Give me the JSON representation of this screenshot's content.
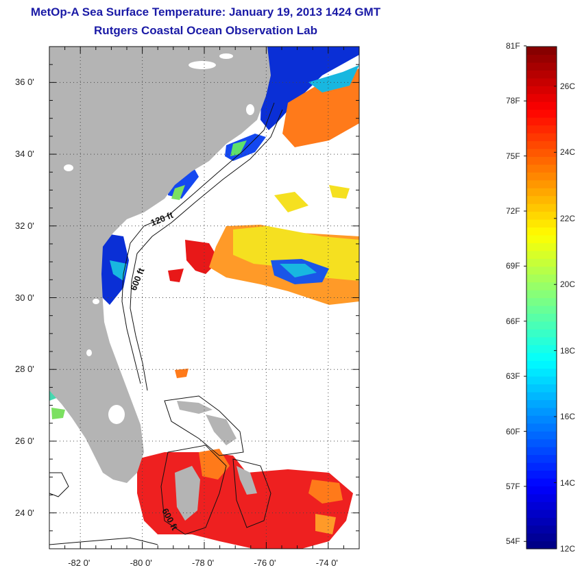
{
  "title": {
    "line1": "MetOp-A Sea Surface Temperature:  January 19, 2013 1424 GMT",
    "line2": "Rutgers Coastal Ocean Observation Lab"
  },
  "map": {
    "lon_range": [
      -83,
      -73
    ],
    "lat_range": [
      23,
      37
    ],
    "land_color": "#b4b4b4",
    "grid": "dotted",
    "x_ticks": [
      {
        "value": -82,
        "label": "-82 0'"
      },
      {
        "value": -80,
        "label": "-80 0'"
      },
      {
        "value": -78,
        "label": "-78 0'"
      },
      {
        "value": -76,
        "label": "-76 0'"
      },
      {
        "value": -74,
        "label": "-74 0'"
      }
    ],
    "y_ticks": [
      {
        "value": 36,
        "label": "36 0'"
      },
      {
        "value": 34,
        "label": "34 0'"
      },
      {
        "value": 32,
        "label": "32 0'"
      },
      {
        "value": 30,
        "label": "30 0'"
      },
      {
        "value": 28,
        "label": "28 0'"
      },
      {
        "value": 26,
        "label": "26 0'"
      },
      {
        "value": 24,
        "label": "24 0'"
      }
    ],
    "contour_labels": {
      "c120": "120 ft",
      "c600_north": "600 ft",
      "c600_south": "600 ft"
    }
  },
  "colorbar": {
    "colormap": "jet",
    "min_c": 12,
    "max_c": 27.2,
    "fahrenheit_labels": [
      "81F",
      "78F",
      "75F",
      "72F",
      "69F",
      "66F",
      "63F",
      "60F",
      "57F",
      "54F"
    ],
    "celsius_labels": [
      "26C",
      "24C",
      "22C",
      "20C",
      "18C",
      "16C",
      "14C",
      "12C"
    ]
  }
}
